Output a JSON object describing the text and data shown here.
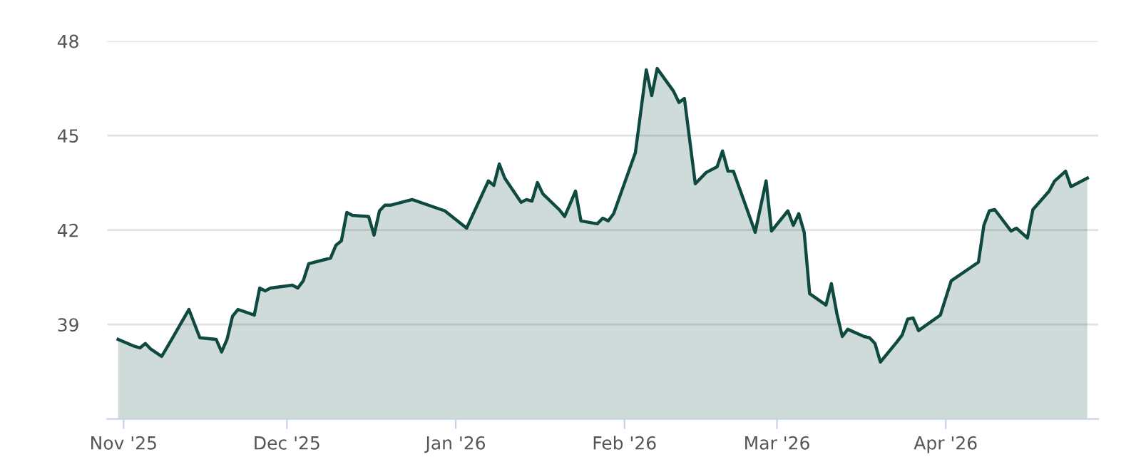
{
  "chart_data": {
    "type": "area",
    "x": [
      "2025-10-31",
      "2025-11-03",
      "2025-11-04",
      "2025-11-05",
      "2025-11-06",
      "2025-11-08",
      "2025-11-10",
      "2025-11-13",
      "2025-11-15",
      "2025-11-18",
      "2025-11-19",
      "2025-11-20",
      "2025-11-21",
      "2025-11-22",
      "2025-11-25",
      "2025-11-26",
      "2025-11-27",
      "2025-11-28",
      "2025-12-02",
      "2025-12-03",
      "2025-12-04",
      "2025-12-05",
      "2025-12-09",
      "2025-12-10",
      "2025-12-11",
      "2025-12-12",
      "2025-12-13",
      "2025-12-16",
      "2025-12-17",
      "2025-12-18",
      "2025-12-19",
      "2025-12-20",
      "2025-12-24",
      "2025-12-30",
      "2026-01-03",
      "2026-01-07",
      "2026-01-08",
      "2026-01-09",
      "2026-01-10",
      "2026-01-13",
      "2026-01-14",
      "2026-01-15",
      "2026-01-16",
      "2026-01-17",
      "2026-01-20",
      "2026-01-21",
      "2026-01-22",
      "2026-01-23",
      "2026-01-24",
      "2026-01-27",
      "2026-01-28",
      "2026-01-29",
      "2026-01-30",
      "2026-02-03",
      "2026-02-05",
      "2026-02-06",
      "2026-02-07",
      "2026-02-10",
      "2026-02-11",
      "2026-02-12",
      "2026-02-14",
      "2026-02-16",
      "2026-02-18",
      "2026-02-19",
      "2026-02-20",
      "2026-02-21",
      "2026-02-25",
      "2026-02-27",
      "2026-02-28",
      "2026-03-03",
      "2026-03-04",
      "2026-03-05",
      "2026-03-06",
      "2026-03-07",
      "2026-03-10",
      "2026-03-11",
      "2026-03-12",
      "2026-03-13",
      "2026-03-14",
      "2026-03-17",
      "2026-03-18",
      "2026-03-19",
      "2026-03-20",
      "2026-03-23",
      "2026-03-24",
      "2026-03-25",
      "2026-03-26",
      "2026-03-27",
      "2026-03-31",
      "2026-04-02",
      "2026-04-07",
      "2026-04-08",
      "2026-04-09",
      "2026-04-10",
      "2026-04-13",
      "2026-04-14",
      "2026-04-16",
      "2026-04-17",
      "2026-04-20",
      "2026-04-21",
      "2026-04-23",
      "2026-04-24",
      "2026-04-27"
    ],
    "series": [
      {
        "color": "#0f4a40",
        "values": [
          38.53,
          38.31,
          38.26,
          38.4,
          38.22,
          37.99,
          38.58,
          39.48,
          38.58,
          38.53,
          38.13,
          38.53,
          39.26,
          39.48,
          39.3,
          40.16,
          40.07,
          40.16,
          40.25,
          40.16,
          40.39,
          40.93,
          41.11,
          41.52,
          41.66,
          42.56,
          42.47,
          42.43,
          41.84,
          42.61,
          42.79,
          42.79,
          42.97,
          42.61,
          42.06,
          43.56,
          43.42,
          44.1,
          43.65,
          42.88,
          42.97,
          42.92,
          43.51,
          43.15,
          42.65,
          42.43,
          42.83,
          43.24,
          42.29,
          42.2,
          42.38,
          42.29,
          42.52,
          44.46,
          47.09,
          46.27,
          47.13,
          46.41,
          46.05,
          46.18,
          43.47,
          43.83,
          44.01,
          44.51,
          43.87,
          43.87,
          41.93,
          43.56,
          41.97,
          42.61,
          42.15,
          42.52,
          41.93,
          39.98,
          39.62,
          40.3,
          39.35,
          38.62,
          38.85,
          38.62,
          38.58,
          38.4,
          37.81,
          38.44,
          38.67,
          39.17,
          39.21,
          38.81,
          39.3,
          40.39,
          40.98,
          42.15,
          42.61,
          42.65,
          41.97,
          42.06,
          41.75,
          42.65,
          43.24,
          43.56,
          43.87,
          43.38,
          43.65
        ]
      }
    ],
    "xlim": [
      "2025-10-29",
      "2026-04-29"
    ],
    "xticks": [
      {
        "value": "2025-11-01",
        "label": "Nov '25"
      },
      {
        "value": "2025-12-01",
        "label": "Dec '25"
      },
      {
        "value": "2026-01-01",
        "label": "Jan '26"
      },
      {
        "value": "2026-02-01",
        "label": "Feb '26"
      },
      {
        "value": "2026-03-01",
        "label": "Mar '26"
      },
      {
        "value": "2026-04-01",
        "label": "Apr '26"
      }
    ],
    "ylim": [
      36,
      48
    ],
    "yticks": [
      39,
      42,
      45,
      48
    ],
    "grid": "y",
    "marker": "none",
    "line_style": "solid"
  }
}
